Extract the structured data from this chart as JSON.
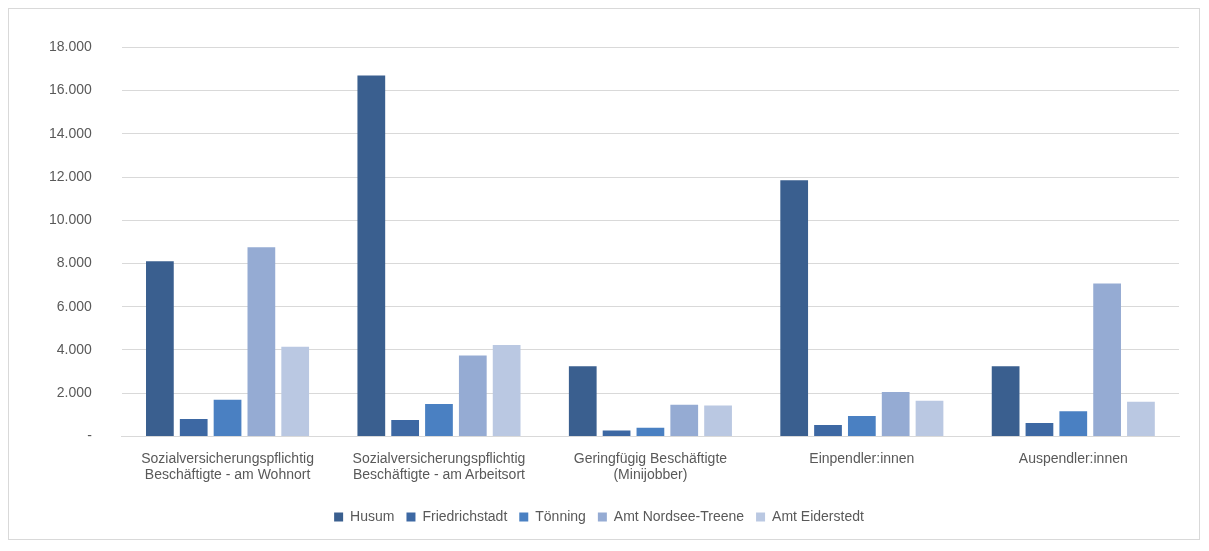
{
  "chart_data": {
    "type": "bar",
    "categories": [
      "Sozialversicherungspflichtig Beschäftigte - am Wohnort",
      "Sozialversicherungspflichtig Beschäftigte - am Arbeitsort",
      "Geringfügig Beschäftigte (Minijobber)",
      "Einpendler:innen",
      "Auspendler:innen"
    ],
    "series": [
      {
        "name": "Husum",
        "color": "#3a5f8f",
        "values": [
          8100,
          16700,
          3250,
          11850,
          3250
        ]
      },
      {
        "name": "Friedrichstadt",
        "color": "#3d68a3",
        "values": [
          800,
          760,
          270,
          530,
          620
        ]
      },
      {
        "name": "Tönning",
        "color": "#4a80c2",
        "values": [
          1700,
          1500,
          400,
          940,
          1160
        ]
      },
      {
        "name": "Amt Nordsee-Treene",
        "color": "#95abd3",
        "values": [
          8750,
          3740,
          1470,
          2050,
          7080
        ]
      },
      {
        "name": "Amt Eiderstedt",
        "color": "#bac8e2",
        "values": [
          4150,
          4230,
          1430,
          1650,
          1600
        ]
      }
    ],
    "ylim": [
      0,
      18000
    ],
    "yticks": [
      {
        "value": 0,
        "label": "-"
      },
      {
        "value": 2000,
        "label": "2.000"
      },
      {
        "value": 4000,
        "label": "4.000"
      },
      {
        "value": 6000,
        "label": "6.000"
      },
      {
        "value": 8000,
        "label": "8.000"
      },
      {
        "value": 10000,
        "label": "10.000"
      },
      {
        "value": 12000,
        "label": "12.000"
      },
      {
        "value": 14000,
        "label": "14.000"
      },
      {
        "value": 16000,
        "label": "16.000"
      },
      {
        "value": 18000,
        "label": "18.000"
      }
    ],
    "grid": "y",
    "legend": "bottom"
  }
}
